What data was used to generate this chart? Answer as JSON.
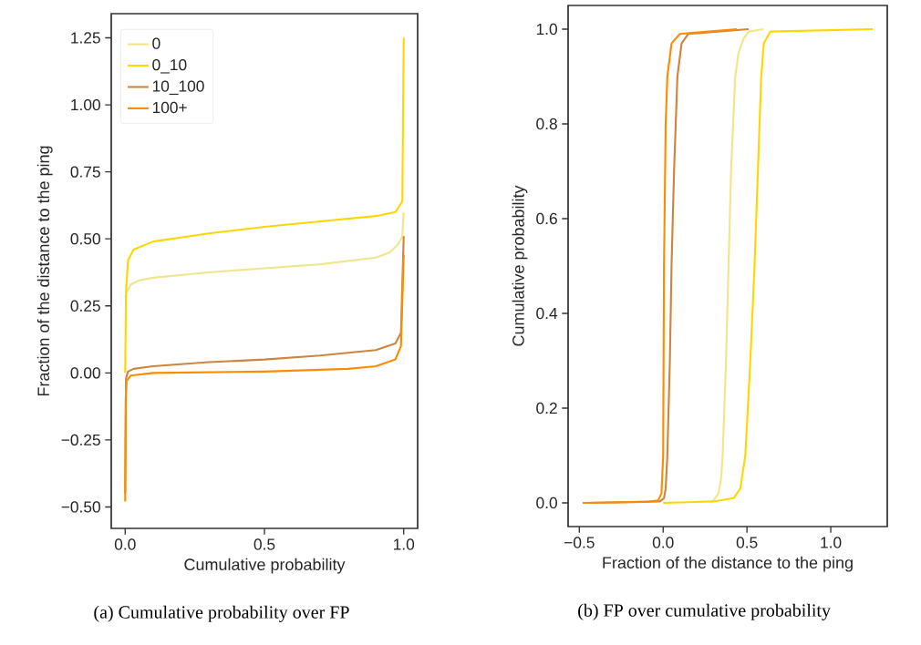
{
  "chart_data": [
    {
      "type": "line",
      "xlabel": "Cumulative probability",
      "ylabel": "Fraction of the distance to the ping",
      "xlim": [
        -0.05,
        1.05
      ],
      "ylim": [
        -0.58,
        1.34
      ],
      "xticks": [
        {
          "value": 0,
          "label": "0.0"
        },
        {
          "value": 0.5,
          "label": "0.5"
        },
        {
          "value": 1,
          "label": "1.0"
        }
      ],
      "yticks": [
        {
          "value": -0.5,
          "label": "−0.50"
        },
        {
          "value": -0.25,
          "label": "−0.25"
        },
        {
          "value": 0,
          "label": "0.00"
        },
        {
          "value": 0.25,
          "label": "0.25"
        },
        {
          "value": 0.5,
          "label": "0.50"
        },
        {
          "value": 0.75,
          "label": "0.75"
        },
        {
          "value": 1,
          "label": "1.00"
        },
        {
          "value": 1.25,
          "label": "1.25"
        }
      ],
      "legend": "top left",
      "grid": false,
      "marker": "none",
      "line_style": "solid",
      "annotations": [
        "(a) Cumulative probability over FP"
      ],
      "series": [
        {
          "name": "0",
          "color": "#f0e68c",
          "x": [
            0,
            0.005,
            0.02,
            0.05,
            0.1,
            0.3,
            0.5,
            0.7,
            0.9,
            0.95,
            0.98,
            0.995,
            1
          ],
          "values": [
            0.28,
            0.3,
            0.33,
            0.345,
            0.355,
            0.375,
            0.39,
            0.405,
            0.43,
            0.45,
            0.48,
            0.51,
            0.6
          ]
        },
        {
          "name": "0_10",
          "color": "#ffd700",
          "x": [
            0,
            0.003,
            0.01,
            0.03,
            0.1,
            0.3,
            0.5,
            0.7,
            0.9,
            0.97,
            0.995,
            1
          ],
          "values": [
            0.0,
            0.3,
            0.42,
            0.46,
            0.49,
            0.52,
            0.545,
            0.565,
            0.585,
            0.6,
            0.64,
            1.25
          ]
        },
        {
          "name": "10_100",
          "color": "#cd853f",
          "x": [
            0,
            0.003,
            0.01,
            0.03,
            0.1,
            0.3,
            0.5,
            0.7,
            0.9,
            0.97,
            0.99,
            1
          ],
          "values": [
            -0.45,
            -0.02,
            0.005,
            0.015,
            0.025,
            0.04,
            0.05,
            0.065,
            0.085,
            0.11,
            0.15,
            0.51
          ]
        },
        {
          "name": "100+",
          "color": "#ff8c00",
          "x": [
            0,
            0.002,
            0.005,
            0.02,
            0.1,
            0.5,
            0.8,
            0.9,
            0.97,
            0.99,
            1
          ],
          "values": [
            -0.48,
            -0.1,
            -0.03,
            -0.01,
            0.0,
            0.005,
            0.015,
            0.025,
            0.05,
            0.1,
            0.44
          ]
        }
      ]
    },
    {
      "type": "line",
      "xlabel": "Fraction of the distance to the ping",
      "ylabel": "Cumulative probability",
      "xlim": [
        -0.567,
        1.337
      ],
      "ylim": [
        -0.05,
        1.05
      ],
      "xticks": [
        {
          "value": -0.5,
          "label": "−0.5"
        },
        {
          "value": 0,
          "label": "0.0"
        },
        {
          "value": 0.5,
          "label": "0.5"
        },
        {
          "value": 1,
          "label": "1.0"
        }
      ],
      "yticks": [
        {
          "value": 0,
          "label": "0.0"
        },
        {
          "value": 0.2,
          "label": "0.2"
        },
        {
          "value": 0.4,
          "label": "0.4"
        },
        {
          "value": 0.6,
          "label": "0.6"
        },
        {
          "value": 0.8,
          "label": "0.8"
        },
        {
          "value": 1,
          "label": "1.0"
        }
      ],
      "grid": false,
      "marker": "none",
      "line_style": "solid",
      "annotations": [
        "(b) FP over cumulative probability"
      ],
      "series": [
        {
          "color": "#f0e68c",
          "x": [
            0.28,
            0.3,
            0.33,
            0.345,
            0.355,
            0.375,
            0.39,
            0.405,
            0.43,
            0.45,
            0.48,
            0.51,
            0.6
          ],
          "values": [
            0,
            0.005,
            0.02,
            0.05,
            0.1,
            0.3,
            0.5,
            0.7,
            0.9,
            0.95,
            0.98,
            0.995,
            1
          ]
        },
        {
          "color": "#ffd700",
          "x": [
            0.0,
            0.3,
            0.42,
            0.46,
            0.49,
            0.52,
            0.545,
            0.565,
            0.585,
            0.6,
            0.64,
            1.25
          ],
          "values": [
            0,
            0.003,
            0.01,
            0.03,
            0.1,
            0.3,
            0.5,
            0.7,
            0.9,
            0.97,
            0.995,
            1
          ]
        },
        {
          "color": "#cd853f",
          "x": [
            -0.45,
            -0.02,
            0.005,
            0.015,
            0.025,
            0.04,
            0.05,
            0.065,
            0.085,
            0.11,
            0.15,
            0.51
          ],
          "values": [
            0,
            0.003,
            0.01,
            0.03,
            0.1,
            0.3,
            0.5,
            0.7,
            0.9,
            0.97,
            0.99,
            1
          ]
        },
        {
          "color": "#ff8c00",
          "x": [
            -0.48,
            -0.1,
            -0.03,
            -0.01,
            0.0,
            0.005,
            0.015,
            0.025,
            0.05,
            0.1,
            0.44
          ],
          "values": [
            0,
            0.002,
            0.005,
            0.02,
            0.1,
            0.5,
            0.8,
            0.9,
            0.97,
            0.99,
            1
          ]
        }
      ]
    }
  ]
}
